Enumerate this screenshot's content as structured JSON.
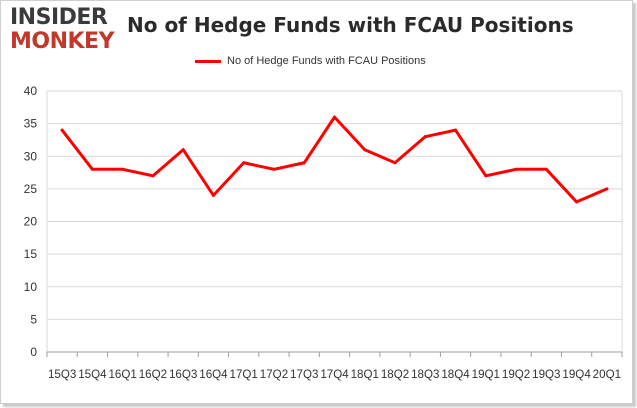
{
  "brand": {
    "logo_top": "INSIDER",
    "logo_bottom": "MONKEY"
  },
  "chart_data": {
    "type": "line",
    "title": "No of Hedge Funds with FCAU Positions",
    "xlabel": "",
    "ylabel": "",
    "ylim": [
      0,
      40
    ],
    "yticks": [
      0,
      5,
      10,
      15,
      20,
      25,
      30,
      35,
      40
    ],
    "grid": true,
    "legend": "top-center",
    "categories": [
      "15Q3",
      "15Q4",
      "16Q1",
      "16Q2",
      "16Q3",
      "16Q4",
      "17Q1",
      "17Q2",
      "17Q3",
      "17Q4",
      "18Q1",
      "18Q2",
      "18Q3",
      "18Q4",
      "19Q1",
      "19Q2",
      "19Q3",
      "19Q4",
      "20Q1"
    ],
    "series": [
      {
        "name": "No of Hedge Funds with FCAU Positions",
        "color": "#ff0000",
        "values": [
          34,
          28,
          28,
          27,
          31,
          24,
          29,
          28,
          29,
          36,
          31,
          29,
          33,
          34,
          27,
          28,
          28,
          23,
          25
        ]
      }
    ]
  }
}
